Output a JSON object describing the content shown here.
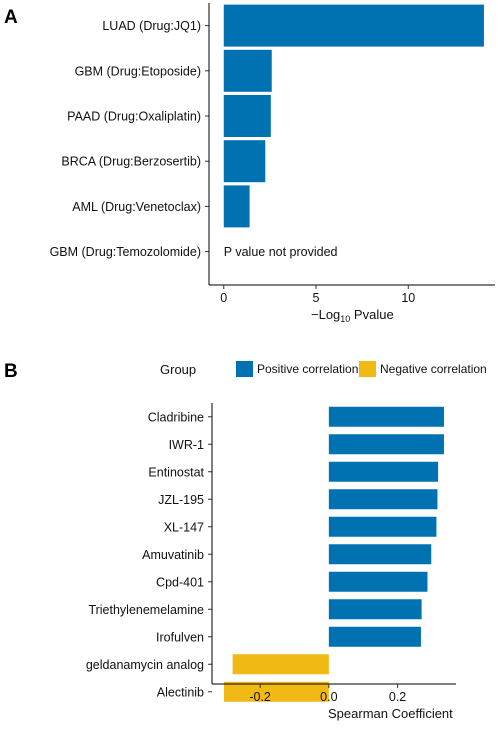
{
  "chart_data": [
    {
      "panel": "A",
      "type": "bar",
      "orientation": "horizontal",
      "categories": [
        "LUAD (Drug:JQ1)",
        "GBM (Drug:Etoposide)",
        "PAAD (Drug:Oxaliplatin)",
        "BRCA (Drug:Berzosertib)",
        "AML (Drug:Venetoclax)",
        "GBM (Drug:Temozolomide)"
      ],
      "values": [
        14.1,
        2.6,
        2.55,
        2.25,
        1.4,
        null
      ],
      "annotation": "P value not provided",
      "xlabel_prefix": "−Log",
      "xlabel_sub": "10",
      "xlabel_suffix": " Pvalue",
      "xlim": [
        -0.8,
        14.7
      ],
      "xticks": [
        0,
        5,
        10
      ],
      "bar_color": "#0072B2",
      "grid": false
    },
    {
      "panel": "B",
      "type": "bar",
      "orientation": "horizontal",
      "categories": [
        "Cladribine",
        "IWR-1",
        "Entinostat",
        "JZL-195",
        "XL-147",
        "Amuvatinib",
        "Cpd-401",
        "Triethylenemelamine",
        "Irofulven",
        "geldanamycin analog",
        "Alectinib"
      ],
      "values": [
        0.335,
        0.335,
        0.318,
        0.316,
        0.313,
        0.298,
        0.287,
        0.27,
        0.268,
        -0.28,
        -0.305
      ],
      "groups": [
        "Positive correlation",
        "Positive correlation",
        "Positive correlation",
        "Positive correlation",
        "Positive correlation",
        "Positive correlation",
        "Positive correlation",
        "Positive correlation",
        "Positive correlation",
        "Negative correlation",
        "Negative correlation"
      ],
      "xlabel": "Spearman Coefficient",
      "xlim": [
        -0.34,
        0.37
      ],
      "xticks": [
        -0.2,
        0.0,
        0.2
      ],
      "xtick_labels": [
        "-0.2",
        "0.0",
        "0.2"
      ],
      "legend": {
        "title": "Group",
        "placement": "top",
        "entries": [
          {
            "label": "Positive correlation",
            "color": "#0072B2"
          },
          {
            "label": "Negative correlation",
            "color": "#F0B913"
          }
        ]
      },
      "grid": false
    }
  ]
}
